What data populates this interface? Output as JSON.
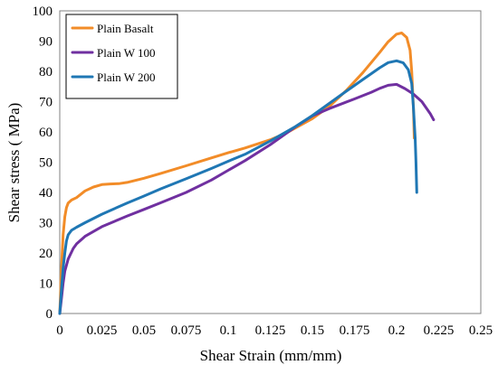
{
  "chart_data": {
    "type": "line",
    "title": "",
    "xlabel": "Shear Strain (mm/mm)",
    "ylabel": "Shear stress ( MPa)",
    "xlim": [
      0,
      0.25
    ],
    "ylim": [
      0,
      100
    ],
    "x_ticks": [
      "0",
      "0.025",
      "0.05",
      "0.075",
      "0.1",
      "0.125",
      "0.15",
      "0.175",
      "0.2",
      "0.225",
      "0.25"
    ],
    "y_ticks": [
      "0",
      "10",
      "20",
      "30",
      "40",
      "50",
      "60",
      "70",
      "80",
      "90",
      "100"
    ],
    "grid": false,
    "legend_position": "top-left",
    "series": [
      {
        "name": "Plain Basalt",
        "color": "#f28c28",
        "points": [
          [
            0,
            0
          ],
          [
            0.001,
            15
          ],
          [
            0.002,
            26
          ],
          [
            0.003,
            32
          ],
          [
            0.004,
            35
          ],
          [
            0.005,
            36.5
          ],
          [
            0.007,
            37.5
          ],
          [
            0.01,
            38.3
          ],
          [
            0.015,
            40.5
          ],
          [
            0.02,
            41.8
          ],
          [
            0.025,
            42.6
          ],
          [
            0.03,
            42.8
          ],
          [
            0.035,
            42.9
          ],
          [
            0.04,
            43.3
          ],
          [
            0.05,
            44.7
          ],
          [
            0.06,
            46.3
          ],
          [
            0.075,
            48.8
          ],
          [
            0.09,
            51.4
          ],
          [
            0.1,
            53.1
          ],
          [
            0.11,
            54.7
          ],
          [
            0.125,
            57.4
          ],
          [
            0.135,
            59.8
          ],
          [
            0.15,
            64.4
          ],
          [
            0.16,
            68.4
          ],
          [
            0.17,
            73.6
          ],
          [
            0.18,
            79.6
          ],
          [
            0.19,
            86.3
          ],
          [
            0.195,
            89.8
          ],
          [
            0.2,
            92.3
          ],
          [
            0.203,
            92.7
          ],
          [
            0.206,
            91.2
          ],
          [
            0.208,
            87
          ],
          [
            0.209,
            80
          ],
          [
            0.21,
            68
          ],
          [
            0.2105,
            58
          ]
        ]
      },
      {
        "name": "Plain W 100",
        "color": "#7030a0",
        "points": [
          [
            0,
            0
          ],
          [
            0.001,
            5
          ],
          [
            0.002,
            10
          ],
          [
            0.003,
            14
          ],
          [
            0.005,
            18
          ],
          [
            0.008,
            21.5
          ],
          [
            0.01,
            23
          ],
          [
            0.015,
            25.5
          ],
          [
            0.025,
            28.7
          ],
          [
            0.04,
            32.2
          ],
          [
            0.05,
            34.4
          ],
          [
            0.06,
            36.6
          ],
          [
            0.075,
            40
          ],
          [
            0.09,
            44.1
          ],
          [
            0.1,
            47.3
          ],
          [
            0.11,
            50.5
          ],
          [
            0.125,
            55.8
          ],
          [
            0.14,
            61.7
          ],
          [
            0.15,
            65.3
          ],
          [
            0.16,
            67.7
          ],
          [
            0.175,
            70.9
          ],
          [
            0.185,
            73.1
          ],
          [
            0.19,
            74.4
          ],
          [
            0.195,
            75.4
          ],
          [
            0.2,
            75.7
          ],
          [
            0.205,
            74.3
          ],
          [
            0.21,
            72.5
          ],
          [
            0.215,
            70
          ],
          [
            0.22,
            66
          ],
          [
            0.222,
            64
          ]
        ]
      },
      {
        "name": "Plain W 200",
        "color": "#1f77b4",
        "points": [
          [
            0,
            0
          ],
          [
            0.001,
            8
          ],
          [
            0.002,
            15
          ],
          [
            0.003,
            20
          ],
          [
            0.004,
            24
          ],
          [
            0.005,
            26
          ],
          [
            0.007,
            27.5
          ],
          [
            0.01,
            28.5
          ],
          [
            0.015,
            30
          ],
          [
            0.025,
            32.8
          ],
          [
            0.04,
            36.5
          ],
          [
            0.05,
            38.8
          ],
          [
            0.06,
            41.2
          ],
          [
            0.075,
            44.5
          ],
          [
            0.09,
            47.9
          ],
          [
            0.1,
            50.3
          ],
          [
            0.11,
            52.6
          ],
          [
            0.125,
            57
          ],
          [
            0.14,
            61.8
          ],
          [
            0.15,
            65.4
          ],
          [
            0.16,
            69.4
          ],
          [
            0.17,
            73.4
          ],
          [
            0.18,
            77.3
          ],
          [
            0.19,
            81.2
          ],
          [
            0.195,
            82.9
          ],
          [
            0.2,
            83.5
          ],
          [
            0.204,
            82.8
          ],
          [
            0.207,
            80.5
          ],
          [
            0.209,
            76
          ],
          [
            0.21,
            68
          ],
          [
            0.211,
            58
          ],
          [
            0.2115,
            50
          ],
          [
            0.212,
            40
          ]
        ]
      }
    ]
  }
}
